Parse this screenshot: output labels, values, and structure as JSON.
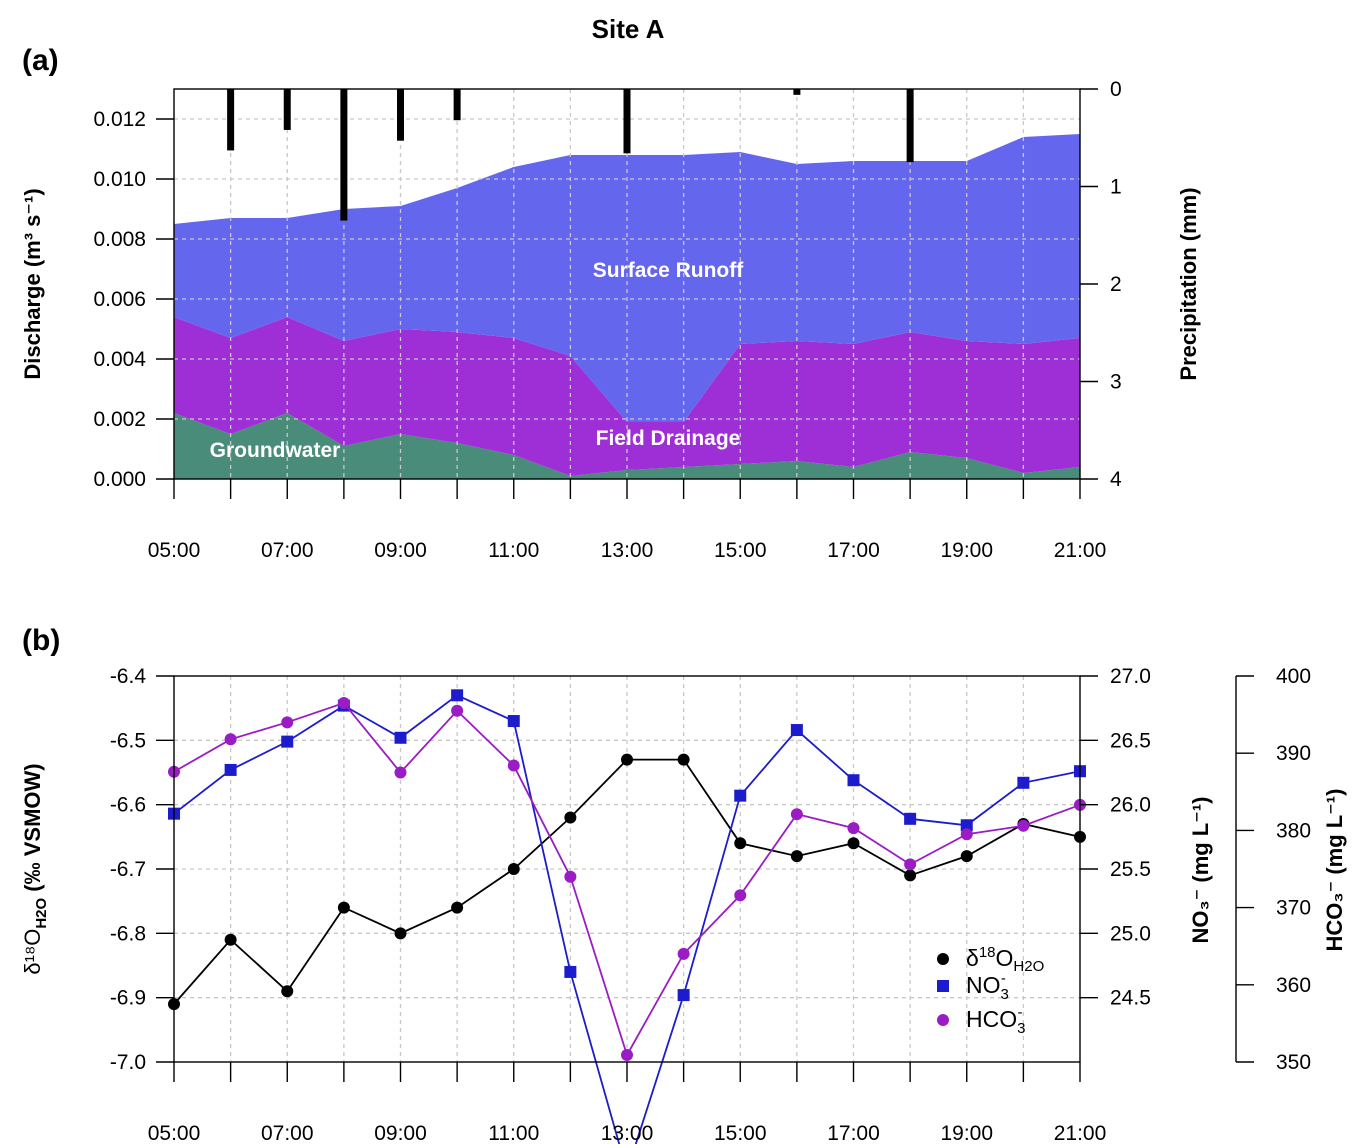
{
  "figure": {
    "title": "Site A",
    "panel_a_label": "(a)",
    "panel_b_label": "(b)"
  },
  "chart_data": [
    {
      "type": "area",
      "panel": "(a)",
      "stacked": true,
      "x": [
        "05:00",
        "06:00",
        "07:00",
        "08:00",
        "09:00",
        "10:00",
        "11:00",
        "12:00",
        "13:00",
        "14:00",
        "15:00",
        "16:00",
        "17:00",
        "18:00",
        "19:00",
        "20:00",
        "21:00"
      ],
      "x_tick_labels": [
        "05:00",
        "07:00",
        "09:00",
        "11:00",
        "13:00",
        "15:00",
        "17:00",
        "19:00",
        "21:00"
      ],
      "ylabel": "Discharge (m³ s⁻¹)",
      "ylim": [
        0,
        0.013
      ],
      "y_ticks": [
        "0.000",
        "0.002",
        "0.004",
        "0.006",
        "0.008",
        "0.010",
        "0.012"
      ],
      "grid": true,
      "series": [
        {
          "name": "Groundwater",
          "color": "#4a8c7a",
          "values": [
            0.0022,
            0.0015,
            0.0022,
            0.0011,
            0.0015,
            0.0012,
            0.0008,
            0.0001,
            0.0003,
            0.0004,
            0.0005,
            0.0006,
            0.0004,
            0.0009,
            0.0007,
            0.0002,
            0.0004
          ]
        },
        {
          "name": "Field Drainage",
          "color": "#9e2fd6",
          "values": [
            0.0032,
            0.0032,
            0.0032,
            0.0035,
            0.0035,
            0.0037,
            0.0039,
            0.004,
            0.0016,
            0.0015,
            0.004,
            0.004,
            0.0041,
            0.004,
            0.0039,
            0.0043,
            0.0043
          ]
        },
        {
          "name": "Surface Runoff",
          "color": "#6566ee",
          "values": [
            0.0031,
            0.004,
            0.0033,
            0.0044,
            0.0041,
            0.0048,
            0.0057,
            0.0067,
            0.0089,
            0.0089,
            0.0064,
            0.0059,
            0.0061,
            0.0057,
            0.006,
            0.0069,
            0.0068
          ]
        }
      ],
      "secondary_axis": {
        "ylabel": "Precipitation (mm)",
        "ylim": [
          4,
          0
        ],
        "y_ticks": [
          "0",
          "1",
          "2",
          "3",
          "4"
        ],
        "precipitation_bars": {
          "x": [
            "06:00",
            "07:00",
            "08:00",
            "09:00",
            "10:00",
            "13:00",
            "16:00",
            "18:00"
          ],
          "values": [
            0.63,
            0.42,
            1.35,
            0.53,
            0.32,
            0.66,
            0.06,
            0.75
          ],
          "color": "#000000"
        }
      }
    },
    {
      "type": "line",
      "panel": "(b)",
      "x": [
        "05:00",
        "06:00",
        "07:00",
        "08:00",
        "09:00",
        "10:00",
        "11:00",
        "12:00",
        "13:00",
        "14:00",
        "15:00",
        "16:00",
        "17:00",
        "18:00",
        "19:00",
        "20:00",
        "21:00"
      ],
      "x_tick_labels": [
        "05:00",
        "07:00",
        "09:00",
        "11:00",
        "13:00",
        "15:00",
        "17:00",
        "19:00",
        "21:00"
      ],
      "grid": true,
      "axes": {
        "left": {
          "label": "δ¹⁸O",
          "label_sub": "H2O",
          "label_rest": " (‰ VSMOW)",
          "ylim": [
            -7.0,
            -6.4
          ],
          "y_ticks": [
            "-6.4",
            "-6.5",
            "-6.6",
            "-6.7",
            "-6.8",
            "-6.9",
            "-7.0"
          ]
        },
        "right1": {
          "label": "NO₃⁻ (mg L⁻¹)",
          "ylim": [
            24.0,
            27.0
          ],
          "y_ticks": [
            "27.0",
            "26.5",
            "26.0",
            "25.5",
            "25.0",
            "24.5"
          ]
        },
        "right2": {
          "label": "HCO₃⁻ (mg L⁻¹)",
          "ylim": [
            350,
            400
          ],
          "y_ticks": [
            "400",
            "390",
            "380",
            "370",
            "360",
            "350"
          ]
        }
      },
      "series": [
        {
          "name": "δ18O",
          "name_sub": "H2O",
          "axis": "left",
          "color": "#000000",
          "marker": "circle",
          "values": [
            -6.91,
            -6.81,
            -6.89,
            -6.76,
            -6.8,
            -6.76,
            -6.7,
            -6.62,
            -6.53,
            -6.53,
            -6.66,
            -6.68,
            -6.66,
            -6.71,
            -6.68,
            -6.63,
            -6.65
          ]
        },
        {
          "name": "NO3-",
          "axis": "right1",
          "color": "#1c1ccc",
          "marker": "square",
          "values": [
            25.93,
            26.27,
            26.49,
            26.77,
            26.52,
            26.85,
            26.65,
            24.7,
            23.15,
            24.52,
            26.07,
            26.58,
            26.19,
            25.89,
            25.84,
            26.17,
            26.26
          ]
        },
        {
          "name": "HCO3-",
          "axis": "right2",
          "color": "#9a1cc4",
          "marker": "circle",
          "values": [
            387.6,
            391.8,
            394.0,
            396.5,
            387.5,
            395.5,
            388.4,
            374.0,
            350.9,
            364.0,
            371.6,
            382.1,
            380.3,
            375.6,
            379.5,
            380.6,
            383.3
          ]
        }
      ],
      "legend": {
        "position": "bottom-right",
        "entries": [
          {
            "base": "δ",
            "sup": "18",
            "mid": "O",
            "sub": "H2O",
            "color": "#000000",
            "marker": "circle"
          },
          {
            "base": "NO",
            "sub": "3",
            "sup": "-",
            "color": "#1c1ccc",
            "marker": "square"
          },
          {
            "base": "HCO",
            "sub": "3",
            "sup": "-",
            "color": "#9a1cc4",
            "marker": "circle"
          }
        ]
      }
    }
  ]
}
